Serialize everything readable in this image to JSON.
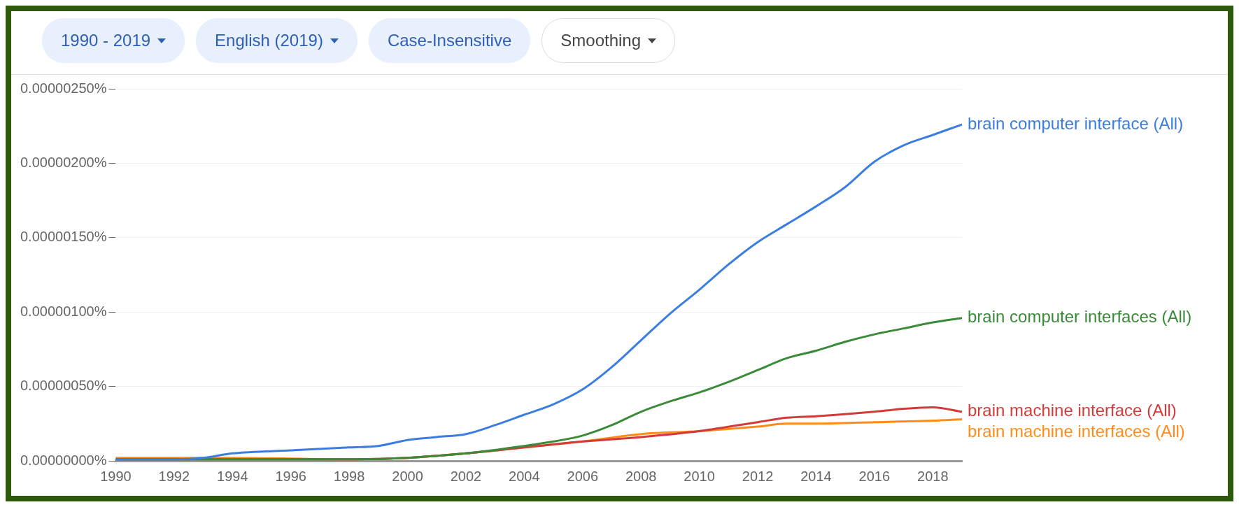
{
  "chart_data": {
    "type": "line",
    "annotations": [
      "1990 - 2019",
      "English (2019)",
      "Case-Insensitive",
      "Smoothing"
    ],
    "xlim": [
      1990,
      2019
    ],
    "xticks": [
      1990,
      1992,
      1994,
      1996,
      1998,
      2000,
      2002,
      2004,
      2006,
      2008,
      2010,
      2012,
      2014,
      2016,
      2018
    ],
    "ylim": [
      0,
      2.5e-06
    ],
    "yticks": [
      {
        "value": 0,
        "label": "0.00000000%"
      },
      {
        "value": 5e-07,
        "label": "0.00000050%"
      },
      {
        "value": 1e-06,
        "label": "0.00000100%"
      },
      {
        "value": 1.5e-06,
        "label": "0.00000150%"
      },
      {
        "value": 2e-06,
        "label": "0.00000200%"
      },
      {
        "value": 2.5e-06,
        "label": "0.00000250%"
      }
    ],
    "grid": "y",
    "legend": false,
    "marker": "none",
    "line_style": "solid",
    "series": [
      {
        "name": "brain computer interface (All)",
        "color": "#3b7de0",
        "x": [
          1990,
          1992,
          1993,
          1994,
          1996,
          1998,
          1999,
          2000,
          2001,
          2002,
          2003,
          2004,
          2005,
          2006,
          2007,
          2008,
          2009,
          2010,
          2011,
          2012,
          2013,
          2014,
          2015,
          2016,
          2017,
          2018,
          2019
        ],
        "values": [
          1e-08,
          1e-08,
          2e-08,
          5e-08,
          7e-08,
          9e-08,
          1e-07,
          1.4e-07,
          1.6e-07,
          1.8e-07,
          2.4e-07,
          3.1e-07,
          3.8e-07,
          4.8e-07,
          6.3e-07,
          8.1e-07,
          9.9e-07,
          1.15e-06,
          1.32e-06,
          1.47e-06,
          1.59e-06,
          1.71e-06,
          1.84e-06,
          2.01e-06,
          2.12e-06,
          2.19e-06,
          2.26e-06
        ]
      },
      {
        "name": "brain computer interfaces (All)",
        "color": "#3a8a3a",
        "x": [
          1990,
          1994,
          1998,
          2000,
          2002,
          2004,
          2005,
          2006,
          2007,
          2008,
          2009,
          2010,
          2011,
          2012,
          2013,
          2014,
          2015,
          2016,
          2017,
          2018,
          2019
        ],
        "values": [
          1e-08,
          1e-08,
          1e-08,
          2e-08,
          5e-08,
          1e-07,
          1.3e-07,
          1.7e-07,
          2.4e-07,
          3.3e-07,
          4e-07,
          4.6e-07,
          5.3e-07,
          6.1e-07,
          6.9e-07,
          7.4e-07,
          8e-07,
          8.5e-07,
          8.9e-07,
          9.3e-07,
          9.6e-07
        ]
      },
      {
        "name": "brain machine interface (All)",
        "color": "#d33b3b",
        "x": [
          1990,
          1994,
          1998,
          2000,
          2002,
          2004,
          2006,
          2008,
          2010,
          2012,
          2013,
          2014,
          2016,
          2017,
          2018,
          2019
        ],
        "values": [
          1e-08,
          1e-08,
          1e-08,
          2e-08,
          5e-08,
          9e-08,
          1.3e-07,
          1.6e-07,
          2e-07,
          2.6e-07,
          2.9e-07,
          3e-07,
          3.3e-07,
          3.5e-07,
          3.6e-07,
          3.3e-07
        ]
      },
      {
        "name": "brain machine interfaces (All)",
        "color": "#ff8c1a",
        "x": [
          1990,
          1994,
          1998,
          2000,
          2002,
          2004,
          2006,
          2008,
          2010,
          2012,
          2013,
          2014,
          2016,
          2018,
          2019
        ],
        "values": [
          2e-08,
          2e-08,
          1e-08,
          2e-08,
          5e-08,
          9e-08,
          1.3e-07,
          1.8e-07,
          2e-07,
          2.3e-07,
          2.5e-07,
          2.5e-07,
          2.6e-07,
          2.7e-07,
          2.8e-07
        ]
      }
    ]
  }
}
